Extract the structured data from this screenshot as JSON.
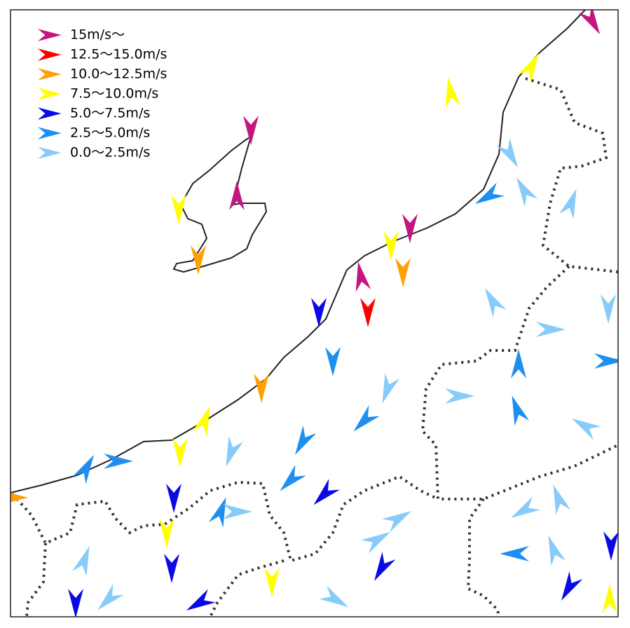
{
  "legend": {
    "items": [
      {
        "label": "15m/s～",
        "color": "#c4167f"
      },
      {
        "label": "12.5～15.0m/s",
        "color": "#ff0000"
      },
      {
        "label": "10.0～12.5m/s",
        "color": "#ffa000"
      },
      {
        "label": "7.5～10.0m/s",
        "color": "#ffff00"
      },
      {
        "label": "5.0～7.5m/s",
        "color": "#0a0ae6"
      },
      {
        "label": "2.5～5.0m/s",
        "color": "#1e8ff0"
      },
      {
        "label": "0.0～2.5m/s",
        "color": "#87cbfa"
      }
    ]
  }
}
